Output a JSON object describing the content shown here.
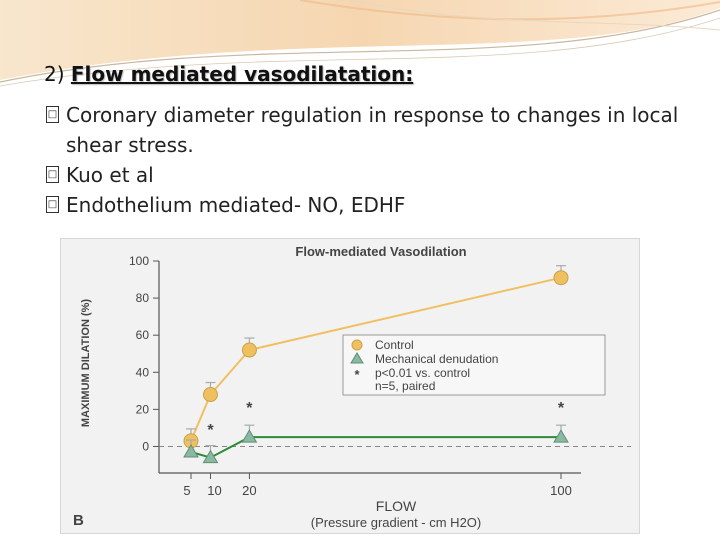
{
  "slide": {
    "title_number": "2)",
    "title_text": "Flow mediated vasodilatation:",
    "bullets": [
      {
        "text": "Coronary diameter regulation in response to changes in local shear stress."
      },
      {
        "text": "Kuo et al"
      },
      {
        "text": "Endothelium mediated- NO, EDHF"
      }
    ],
    "bullet_glyph": "□"
  },
  "chart_data": {
    "type": "line",
    "title": "Flow-mediated Vasodilation",
    "panel_label": "B",
    "xlabel": "FLOW",
    "xlabel_sub": "(Pressure gradient - cm H2O)",
    "ylabel": "MAXIMUM DILATION (%)",
    "x_ticks": [
      "5",
      "10",
      "20",
      "100"
    ],
    "y_ticks": [
      0,
      20,
      40,
      60,
      80,
      100
    ],
    "ylim": [
      -10,
      100
    ],
    "x": [
      5,
      10,
      20,
      100
    ],
    "series": [
      {
        "name": "Control",
        "values": [
          3,
          28,
          52,
          91
        ],
        "color": "#f0c060",
        "marker": "circle"
      },
      {
        "name": "Mechanical denudation",
        "values": [
          -3,
          -6,
          5,
          5
        ],
        "color": "#8ab8a0",
        "marker": "triangle",
        "line_color": "#2f8a3a"
      }
    ],
    "significance_marks": [
      {
        "x": 10,
        "label": "*"
      },
      {
        "x": 20,
        "label": "*"
      },
      {
        "x": 100,
        "label": "*"
      }
    ],
    "legend": {
      "position": "right-middle",
      "items": [
        "Control",
        "Mechanical denudation",
        "p<0.01 vs. control",
        "n=5, paired"
      ]
    },
    "reference_line": {
      "y": 0,
      "style": "dashed"
    }
  }
}
